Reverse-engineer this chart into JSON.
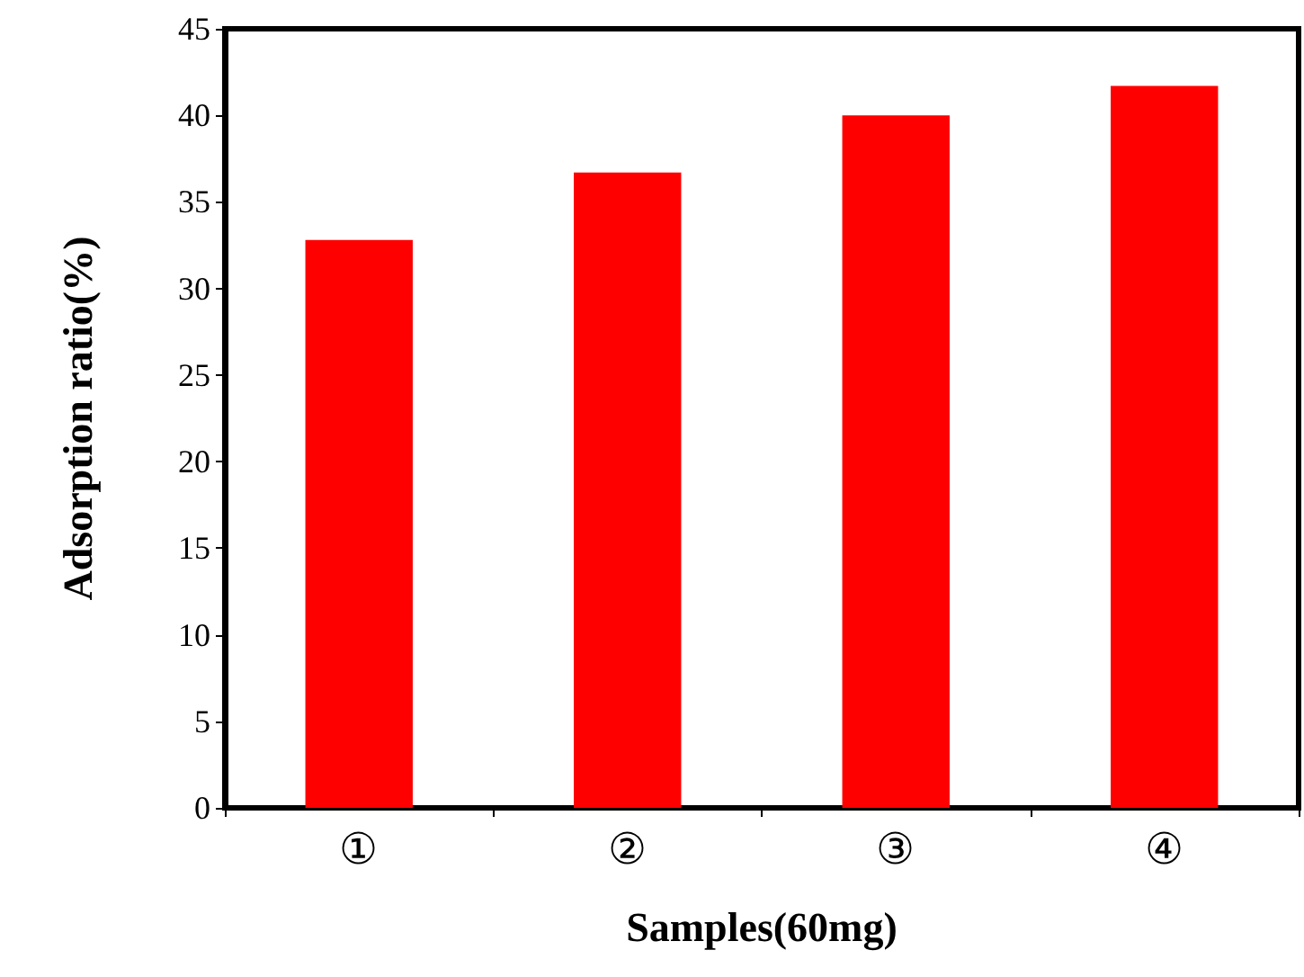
{
  "chart_data": {
    "type": "bar",
    "xlabel": "Samples(60mg)",
    "ylabel": "Adsorption ratio(%)",
    "categories": [
      "①",
      "②",
      "③",
      "④"
    ],
    "values": [
      32.8,
      36.7,
      40.0,
      41.7
    ],
    "color": "#ff0000",
    "ylim": [
      0,
      45
    ],
    "yticks": [
      0,
      5,
      10,
      15,
      20,
      25,
      30,
      35,
      40,
      45
    ],
    "grid": false
  }
}
